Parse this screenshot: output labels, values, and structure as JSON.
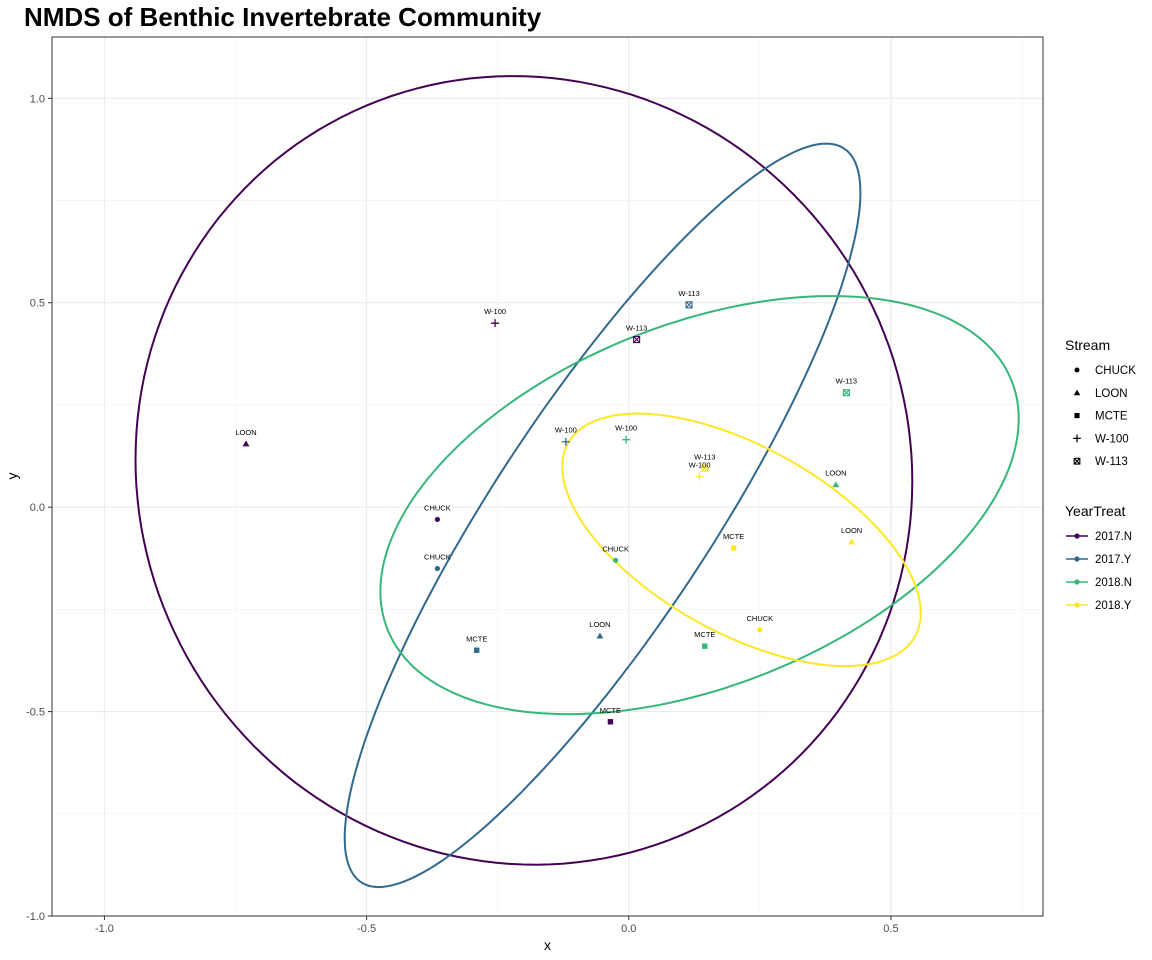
{
  "chart_data": {
    "type": "scatter",
    "title": "NMDS of Benthic Invertebrate Community",
    "xlabel": "x",
    "ylabel": "y",
    "xlim": [
      -1.1,
      0.79
    ],
    "ylim": [
      -1.0,
      1.15
    ],
    "x_ticks": [
      -1.0,
      -0.5,
      0.0,
      0.5
    ],
    "x_tick_labels": [
      "-1.0",
      "-0.5",
      "0.0",
      "0.5"
    ],
    "y_ticks": [
      -1.0,
      -0.5,
      0.0,
      0.5,
      1.0
    ],
    "y_tick_labels": [
      "-1.0",
      "-0.5",
      "0.0",
      "0.5",
      "1.0"
    ],
    "grid": true,
    "legend_position": "right",
    "legends": {
      "stream": {
        "title": "Stream",
        "entries": [
          {
            "label": "CHUCK",
            "shape": "circle"
          },
          {
            "label": "LOON",
            "shape": "triangle"
          },
          {
            "label": "MCTE",
            "shape": "square"
          },
          {
            "label": "W-100",
            "shape": "plus"
          },
          {
            "label": "W-113",
            "shape": "boxed-x"
          }
        ]
      },
      "year_treat": {
        "title": "YearTreat",
        "entries": [
          {
            "label": "2017.N",
            "color": "#440154"
          },
          {
            "label": "2017.Y",
            "color": "#31688e"
          },
          {
            "label": "2018.N",
            "color": "#35b779"
          },
          {
            "label": "2018.Y",
            "color": "#fde725"
          }
        ]
      }
    },
    "points": [
      {
        "label": "LOON",
        "stream": "LOON",
        "group": "2017.N",
        "x": -0.73,
        "y": 0.155
      },
      {
        "label": "CHUCK",
        "stream": "CHUCK",
        "group": "2017.N",
        "x": -0.365,
        "y": -0.03
      },
      {
        "label": "W-100",
        "stream": "W-100",
        "group": "2017.N",
        "x": -0.255,
        "y": 0.45
      },
      {
        "label": "W-113",
        "stream": "W-113",
        "group": "2017.N",
        "x": 0.015,
        "y": 0.41
      },
      {
        "label": "MCTE",
        "stream": "MCTE",
        "group": "2017.N",
        "x": -0.035,
        "y": -0.525
      },
      {
        "label": "CHUCK",
        "stream": "CHUCK",
        "group": "2017.Y",
        "x": -0.365,
        "y": -0.15
      },
      {
        "label": "MCTE",
        "stream": "MCTE",
        "group": "2017.Y",
        "x": -0.29,
        "y": -0.35
      },
      {
        "label": "W-100",
        "stream": "W-100",
        "group": "2017.Y",
        "x": -0.12,
        "y": 0.16
      },
      {
        "label": "W-113",
        "stream": "W-113",
        "group": "2017.Y",
        "x": 0.115,
        "y": 0.495
      },
      {
        "label": "LOON",
        "stream": "LOON",
        "group": "2017.Y",
        "x": -0.055,
        "y": -0.315
      },
      {
        "label": "CHUCK",
        "stream": "CHUCK",
        "group": "2018.N",
        "x": -0.025,
        "y": -0.13
      },
      {
        "label": "W-100",
        "stream": "W-100",
        "group": "2018.N",
        "x": -0.005,
        "y": 0.165
      },
      {
        "label": "MCTE",
        "stream": "MCTE",
        "group": "2018.N",
        "x": 0.145,
        "y": -0.34
      },
      {
        "label": "LOON",
        "stream": "LOON",
        "group": "2018.N",
        "x": 0.395,
        "y": 0.055
      },
      {
        "label": "W-113",
        "stream": "W-113",
        "group": "2018.N",
        "x": 0.415,
        "y": 0.28
      },
      {
        "label": "W-113",
        "stream": "W-113",
        "group": "2018.Y",
        "x": 0.145,
        "y": 0.095
      },
      {
        "label": "W-100",
        "stream": "W-100",
        "group": "2018.Y",
        "x": 0.135,
        "y": 0.075
      },
      {
        "label": "MCTE",
        "stream": "MCTE",
        "group": "2018.Y",
        "x": 0.2,
        "y": -0.1
      },
      {
        "label": "LOON",
        "stream": "LOON",
        "group": "2018.Y",
        "x": 0.425,
        "y": -0.085
      },
      {
        "label": "CHUCK",
        "stream": "CHUCK",
        "group": "2018.Y",
        "x": 0.25,
        "y": -0.3
      }
    ],
    "ellipses": [
      {
        "group": "2017.N",
        "center": [
          -0.2,
          0.09
        ],
        "semi_axes": [
          0.74,
          0.965
        ],
        "rotation_deg": 3
      },
      {
        "group": "2017.Y",
        "center": [
          -0.05,
          -0.02
        ],
        "semi_axes": [
          1.01,
          0.22
        ],
        "rotation_deg": 63.5
      },
      {
        "group": "2018.N",
        "center": [
          0.135,
          0.005
        ],
        "semi_axes": [
          0.675,
          0.42
        ],
        "rotation_deg": 33.5
      },
      {
        "group": "2018.Y",
        "center": [
          0.215,
          -0.08
        ],
        "semi_axes": [
          0.41,
          0.21
        ],
        "rotation_deg": -40
      }
    ]
  }
}
